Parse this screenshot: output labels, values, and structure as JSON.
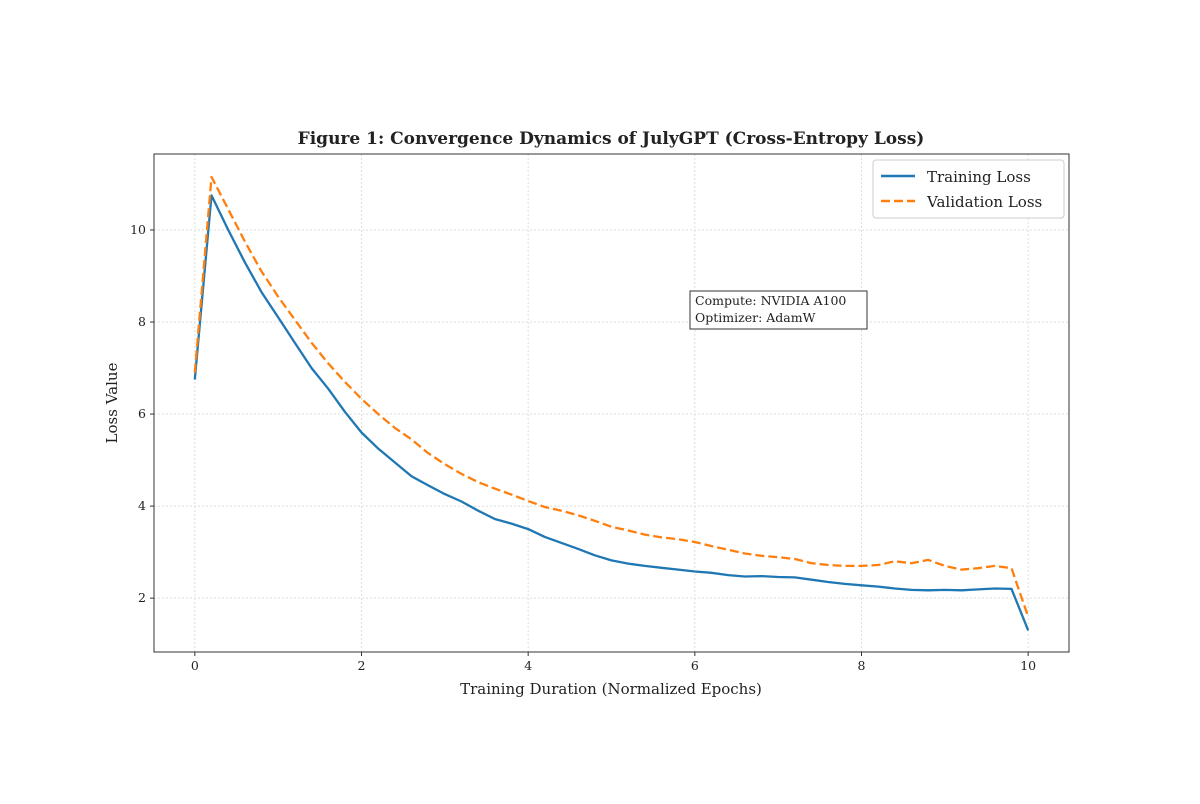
{
  "chart_data": {
    "type": "line",
    "title": "Figure 1: Convergence Dynamics of JulyGPT (Cross-Entropy Loss)",
    "xlabel": "Training Duration (Normalized Epochs)",
    "ylabel": "Loss Value",
    "xlim": [
      -0.49,
      10.49
    ],
    "ylim": [
      0.83,
      11.65
    ],
    "xticks": [
      0,
      2,
      4,
      6,
      8,
      10
    ],
    "yticks": [
      2,
      4,
      6,
      8,
      10
    ],
    "grid": true,
    "legend_position": "top-right",
    "x": [
      0,
      0.2,
      0.4,
      0.6,
      0.8,
      1.0,
      1.2,
      1.4,
      1.6,
      1.8,
      2.0,
      2.2,
      2.4,
      2.6,
      2.8,
      3.0,
      3.2,
      3.4,
      3.6,
      3.8,
      4.0,
      4.2,
      4.4,
      4.6,
      4.8,
      5.0,
      5.2,
      5.4,
      5.6,
      5.8,
      6.0,
      6.2,
      6.4,
      6.6,
      6.8,
      7.0,
      7.2,
      7.4,
      7.6,
      7.8,
      8.0,
      8.2,
      8.4,
      8.6,
      8.8,
      9.0,
      9.2,
      9.4,
      9.6,
      9.8,
      10.0
    ],
    "series": [
      {
        "name": "Training Loss",
        "color": "#1f77b4",
        "style": "solid",
        "values": [
          6.75,
          10.75,
          10.0,
          9.3,
          8.65,
          8.1,
          7.55,
          7.0,
          6.55,
          6.05,
          5.6,
          5.25,
          4.95,
          4.65,
          4.45,
          4.26,
          4.1,
          3.9,
          3.72,
          3.62,
          3.5,
          3.33,
          3.2,
          3.07,
          2.93,
          2.82,
          2.75,
          2.7,
          2.66,
          2.62,
          2.58,
          2.55,
          2.5,
          2.47,
          2.48,
          2.46,
          2.45,
          2.4,
          2.35,
          2.31,
          2.28,
          2.25,
          2.21,
          2.18,
          2.17,
          2.18,
          2.17,
          2.19,
          2.21,
          2.2,
          1.3
        ]
      },
      {
        "name": "Validation Loss",
        "color": "#ff7f0e",
        "style": "dashed",
        "values": [
          6.9,
          11.15,
          10.45,
          9.75,
          9.1,
          8.55,
          8.05,
          7.55,
          7.1,
          6.7,
          6.33,
          6.0,
          5.7,
          5.45,
          5.15,
          4.91,
          4.7,
          4.52,
          4.38,
          4.25,
          4.11,
          3.98,
          3.9,
          3.8,
          3.68,
          3.55,
          3.47,
          3.38,
          3.32,
          3.28,
          3.22,
          3.13,
          3.05,
          2.97,
          2.92,
          2.89,
          2.85,
          2.76,
          2.72,
          2.7,
          2.7,
          2.72,
          2.8,
          2.76,
          2.83,
          2.7,
          2.62,
          2.65,
          2.7,
          2.65,
          1.59
        ]
      }
    ],
    "annotation": {
      "lines": [
        "Compute: NVIDIA A100",
        "Optimizer: AdamW"
      ]
    }
  }
}
